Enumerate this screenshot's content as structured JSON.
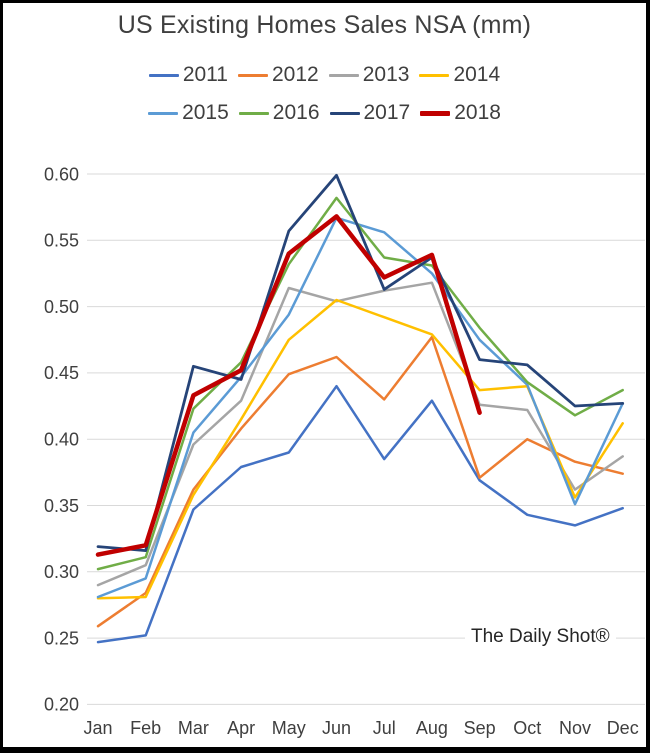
{
  "chart": {
    "watermark": "The Daily Shot®"
  },
  "chart_data": {
    "type": "line",
    "title": "US Existing Homes Sales NSA (mm)",
    "categories": [
      "Jan",
      "Feb",
      "Mar",
      "Apr",
      "May",
      "Jun",
      "Jul",
      "Aug",
      "Sep",
      "Oct",
      "Nov",
      "Dec"
    ],
    "series": [
      {
        "name": "2011",
        "color": "#4472C4",
        "width": 2.5,
        "values": [
          0.247,
          0.252,
          0.347,
          0.379,
          0.39,
          0.44,
          0.385,
          0.429,
          0.369,
          0.343,
          0.335,
          0.348
        ]
      },
      {
        "name": "2012",
        "color": "#ED7D31",
        "width": 2.5,
        "values": [
          0.259,
          0.284,
          0.362,
          0.408,
          0.449,
          0.462,
          0.43,
          0.477,
          0.371,
          0.4,
          0.383,
          0.374
        ]
      },
      {
        "name": "2013",
        "color": "#A5A5A5",
        "width": 2.5,
        "values": [
          0.29,
          0.305,
          0.396,
          0.429,
          0.514,
          0.504,
          0.512,
          0.518,
          0.426,
          0.422,
          0.362,
          0.387
        ]
      },
      {
        "name": "2014",
        "color": "#FFC000",
        "width": 2.5,
        "values": [
          0.28,
          0.281,
          0.358,
          0.415,
          0.475,
          0.505,
          0.492,
          0.479,
          0.437,
          0.44,
          0.356,
          0.412
        ]
      },
      {
        "name": "2015",
        "color": "#5B9BD5",
        "width": 2.5,
        "values": [
          0.281,
          0.295,
          0.405,
          0.447,
          0.494,
          0.567,
          0.556,
          0.525,
          0.475,
          0.441,
          0.351,
          0.427
        ]
      },
      {
        "name": "2016",
        "color": "#70AD47",
        "width": 2.5,
        "values": [
          0.302,
          0.311,
          0.423,
          0.458,
          0.532,
          0.582,
          0.537,
          0.531,
          0.484,
          0.443,
          0.418,
          0.437
        ]
      },
      {
        "name": "2017",
        "color": "#264478",
        "width": 2.8,
        "values": [
          0.319,
          0.316,
          0.455,
          0.445,
          0.557,
          0.599,
          0.513,
          0.537,
          0.46,
          0.456,
          0.425,
          0.427
        ]
      },
      {
        "name": "2018",
        "color": "#C00000",
        "width": 4.5,
        "values": [
          0.313,
          0.32,
          0.433,
          0.452,
          0.54,
          0.568,
          0.522,
          0.539,
          0.42
        ]
      }
    ],
    "ylim": [
      0.2,
      0.6
    ],
    "ytick_step": 0.05,
    "ytick_format_decimals": 2,
    "grid": true,
    "gridline_color": "#d9d9d9",
    "axis_text_color": "#3f3f3f",
    "legend_position": "top",
    "annotations": [
      "The Daily Shot®"
    ]
  }
}
